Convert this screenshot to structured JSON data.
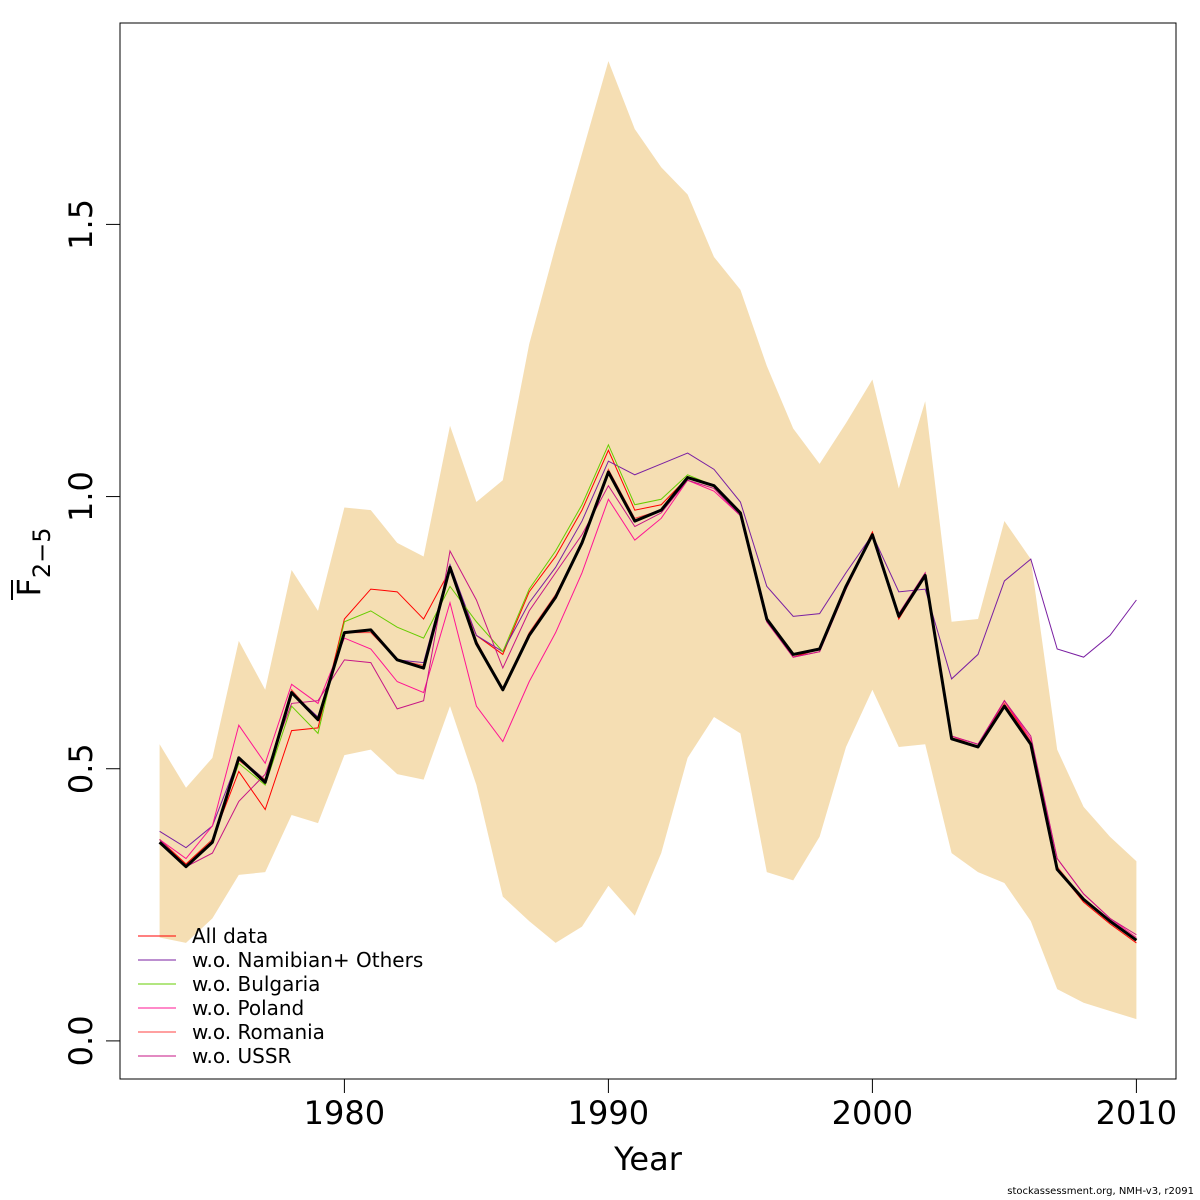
{
  "chart_data": {
    "type": "line",
    "xlabel": "Year",
    "ylabel_main": "F",
    "ylabel_sub": "2−5",
    "xlim": [
      1971.5,
      2011.5
    ],
    "ylim": [
      -0.07,
      1.87
    ],
    "x_ticks": [
      1980,
      1990,
      2000,
      2010
    ],
    "x_tick_labels": [
      "1980",
      "1990",
      "2000",
      "2010"
    ],
    "y_ticks": [
      0.0,
      0.5,
      1.0,
      1.5
    ],
    "y_tick_labels": [
      "0.0",
      "0.5",
      "1.0",
      "1.5"
    ],
    "grid": false,
    "legend_position": "bottom-left",
    "x": [
      1973,
      1974,
      1975,
      1976,
      1977,
      1978,
      1979,
      1980,
      1981,
      1982,
      1983,
      1984,
      1985,
      1986,
      1987,
      1988,
      1989,
      1990,
      1991,
      1992,
      1993,
      1994,
      1995,
      1996,
      1997,
      1998,
      1999,
      2000,
      2001,
      2002,
      2003,
      2004,
      2005,
      2006,
      2007,
      2008,
      2009,
      2010
    ],
    "band": {
      "color": "#f5deb3",
      "upper": [
        0.545,
        0.465,
        0.52,
        0.735,
        0.645,
        0.865,
        0.79,
        0.98,
        0.975,
        0.915,
        0.89,
        1.13,
        0.99,
        1.03,
        1.28,
        1.46,
        1.63,
        1.8,
        1.675,
        1.605,
        1.555,
        1.44,
        1.38,
        1.24,
        1.125,
        1.06,
        1.135,
        1.215,
        1.015,
        1.175,
        0.77,
        0.775,
        0.955,
        0.885,
        0.535,
        0.43,
        0.375,
        0.33
      ],
      "lower": [
        0.19,
        0.18,
        0.225,
        0.305,
        0.31,
        0.415,
        0.4,
        0.525,
        0.535,
        0.49,
        0.48,
        0.615,
        0.47,
        0.265,
        0.22,
        0.18,
        0.21,
        0.285,
        0.23,
        0.345,
        0.52,
        0.595,
        0.565,
        0.31,
        0.295,
        0.375,
        0.54,
        0.645,
        0.54,
        0.545,
        0.345,
        0.31,
        0.29,
        0.22,
        0.095,
        0.07,
        0.055,
        0.04
      ]
    },
    "main_series": {
      "color": "#000000",
      "values": [
        0.365,
        0.32,
        0.365,
        0.52,
        0.475,
        0.64,
        0.59,
        0.75,
        0.755,
        0.7,
        0.685,
        0.87,
        0.73,
        0.645,
        0.745,
        0.815,
        0.915,
        1.045,
        0.955,
        0.975,
        1.035,
        1.02,
        0.97,
        0.775,
        0.71,
        0.72,
        0.835,
        0.93,
        0.78,
        0.855,
        0.555,
        0.54,
        0.615,
        0.545,
        0.315,
        0.26,
        0.22,
        0.185
      ]
    },
    "series": [
      {
        "name": "All data",
        "color": "#ff0000",
        "values": [
          0.37,
          0.325,
          0.37,
          0.495,
          0.425,
          0.57,
          0.575,
          0.775,
          0.83,
          0.825,
          0.775,
          0.865,
          0.745,
          0.71,
          0.825,
          0.89,
          0.975,
          1.085,
          0.975,
          0.985,
          1.035,
          1.02,
          0.97,
          0.77,
          0.705,
          0.72,
          0.835,
          0.935,
          0.775,
          0.855,
          0.555,
          0.54,
          0.625,
          0.55,
          0.315,
          0.255,
          0.215,
          0.18
        ]
      },
      {
        "name": "w.o. Namibian+ Others",
        "color": "#7a1fa2",
        "values": [
          0.385,
          0.355,
          0.395,
          0.52,
          0.48,
          0.64,
          0.595,
          0.75,
          0.755,
          0.7,
          0.695,
          0.875,
          0.745,
          0.715,
          0.805,
          0.87,
          0.955,
          1.065,
          1.04,
          1.06,
          1.08,
          1.05,
          0.99,
          0.835,
          0.78,
          0.785,
          0.86,
          0.93,
          0.825,
          0.83,
          0.665,
          0.71,
          0.845,
          0.885,
          0.72,
          0.705,
          0.745,
          0.81
        ]
      },
      {
        "name": "w.o. Bulgaria",
        "color": "#66cc00",
        "values": [
          0.37,
          0.32,
          0.37,
          0.51,
          0.47,
          0.615,
          0.565,
          0.77,
          0.79,
          0.76,
          0.74,
          0.835,
          0.77,
          0.715,
          0.83,
          0.9,
          0.985,
          1.095,
          0.985,
          0.995,
          1.04,
          1.02,
          0.97,
          0.775,
          0.71,
          0.72,
          0.835,
          0.93,
          0.78,
          0.855,
          0.555,
          0.54,
          0.615,
          0.545,
          0.315,
          0.26,
          0.22,
          0.185
        ]
      },
      {
        "name": "w.o. Poland",
        "color": "#ff1493",
        "values": [
          0.37,
          0.335,
          0.395,
          0.58,
          0.51,
          0.655,
          0.62,
          0.74,
          0.72,
          0.66,
          0.64,
          0.805,
          0.615,
          0.55,
          0.66,
          0.75,
          0.86,
          0.995,
          0.92,
          0.96,
          1.03,
          1.01,
          0.965,
          0.77,
          0.705,
          0.715,
          0.83,
          0.93,
          0.78,
          0.855,
          0.56,
          0.545,
          0.625,
          0.555,
          0.335,
          0.27,
          0.225,
          0.19
        ]
      },
      {
        "name": "w.o. Romania",
        "color": "#ff4040",
        "values": [
          0.365,
          0.32,
          0.37,
          0.515,
          0.48,
          0.645,
          0.59,
          0.75,
          0.75,
          0.7,
          0.69,
          0.87,
          0.735,
          0.645,
          0.75,
          0.82,
          0.915,
          1.05,
          0.96,
          0.975,
          1.035,
          1.02,
          0.97,
          0.775,
          0.71,
          0.72,
          0.835,
          0.93,
          0.78,
          0.855,
          0.56,
          0.54,
          0.62,
          0.55,
          0.32,
          0.26,
          0.22,
          0.185
        ]
      },
      {
        "name": "w.o. USSR",
        "color": "#c71585",
        "values": [
          0.37,
          0.32,
          0.345,
          0.44,
          0.49,
          0.62,
          0.625,
          0.7,
          0.695,
          0.61,
          0.625,
          0.9,
          0.81,
          0.685,
          0.79,
          0.86,
          0.93,
          1.02,
          0.945,
          0.97,
          1.03,
          1.015,
          0.965,
          0.77,
          0.705,
          0.715,
          0.83,
          0.93,
          0.785,
          0.86,
          0.56,
          0.545,
          0.625,
          0.56,
          0.335,
          0.27,
          0.225,
          0.195
        ]
      }
    ]
  },
  "footer": "stockassessment.org, NMH-v3, r2091"
}
